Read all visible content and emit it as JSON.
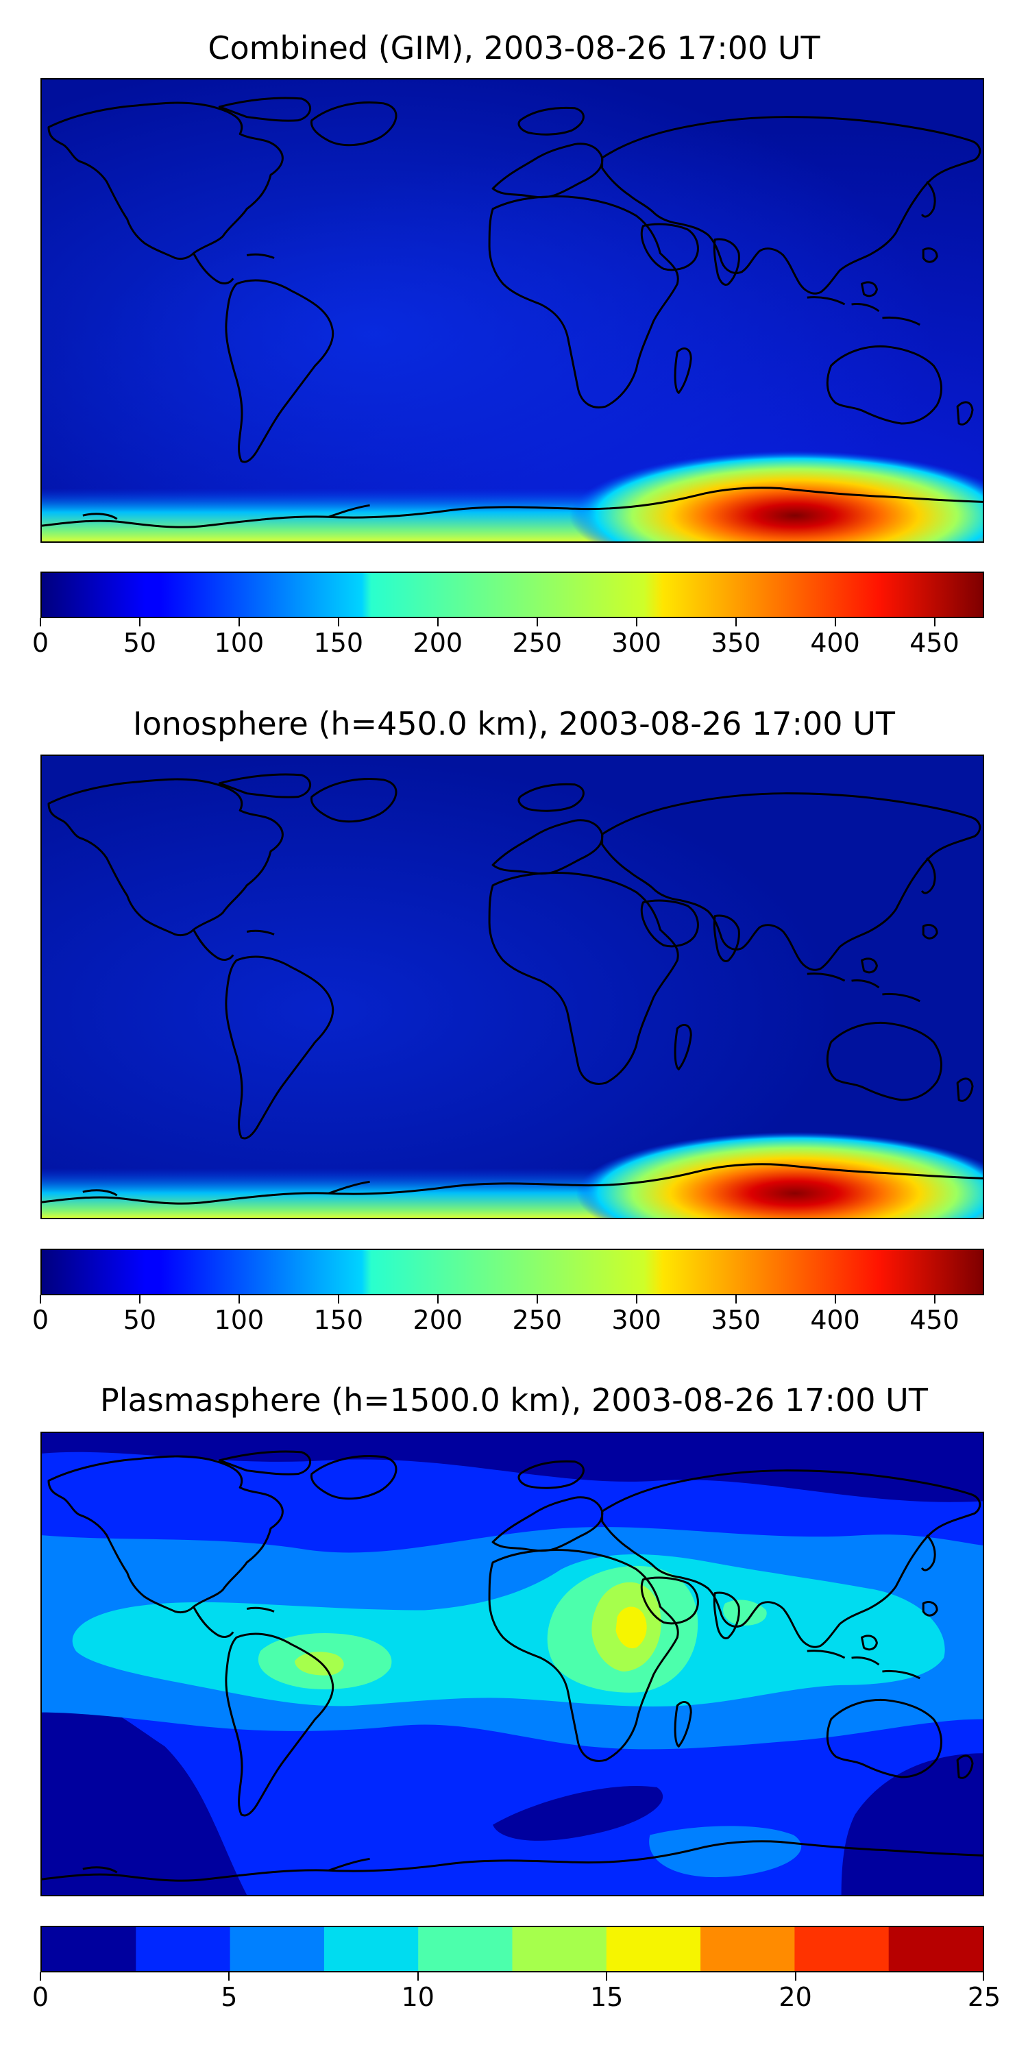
{
  "panels": [
    {
      "title": "Combined (GIM), 2003-08-26 17:00 UT",
      "colorbar": {
        "min": 0,
        "max": 475,
        "ticks": [
          "0",
          "50",
          "100",
          "150",
          "200",
          "250",
          "300",
          "350",
          "400",
          "450"
        ],
        "tick_values": [
          0,
          50,
          100,
          150,
          200,
          250,
          300,
          350,
          400,
          450
        ],
        "style": "continuous",
        "colormap": "jet"
      },
      "field": {
        "background": "low",
        "peak_region": "southern polar band",
        "peak_value": 475
      }
    },
    {
      "title": "Ionosphere  (h=450.0 km), 2003-08-26 17:00 UT",
      "colorbar": {
        "min": 0,
        "max": 475,
        "ticks": [
          "0",
          "50",
          "100",
          "150",
          "200",
          "250",
          "300",
          "350",
          "400",
          "450"
        ],
        "tick_values": [
          0,
          50,
          100,
          150,
          200,
          250,
          300,
          350,
          400,
          450
        ],
        "style": "continuous",
        "colormap": "jet"
      },
      "field": {
        "background": "low",
        "peak_region": "southern polar band",
        "peak_value": 475
      }
    },
    {
      "title": "Plasmasphere (h=1500.0 km), 2003-08-26 17:00 UT",
      "colorbar": {
        "min": 0,
        "max": 25,
        "ticks": [
          "0",
          "5",
          "10",
          "15",
          "20",
          "25"
        ],
        "tick_values": [
          0,
          5,
          10,
          15,
          20,
          25
        ],
        "style": "discrete",
        "levels": [
          0,
          2.5,
          5,
          7.5,
          10,
          12.5,
          15,
          17.5,
          20,
          22.5,
          25
        ],
        "colors": [
          "#00009e",
          "#0027ff",
          "#0080ff",
          "#00dcf0",
          "#4cffac",
          "#a6ff4c",
          "#f6f500",
          "#ff8b00",
          "#ff3300",
          "#b70000"
        ]
      },
      "field": {
        "background": "low",
        "peak_region": "equatorial band over Africa and South America",
        "peak_value": 17
      }
    }
  ],
  "colors": {
    "frame": "#000000",
    "coastline": "#000000"
  }
}
